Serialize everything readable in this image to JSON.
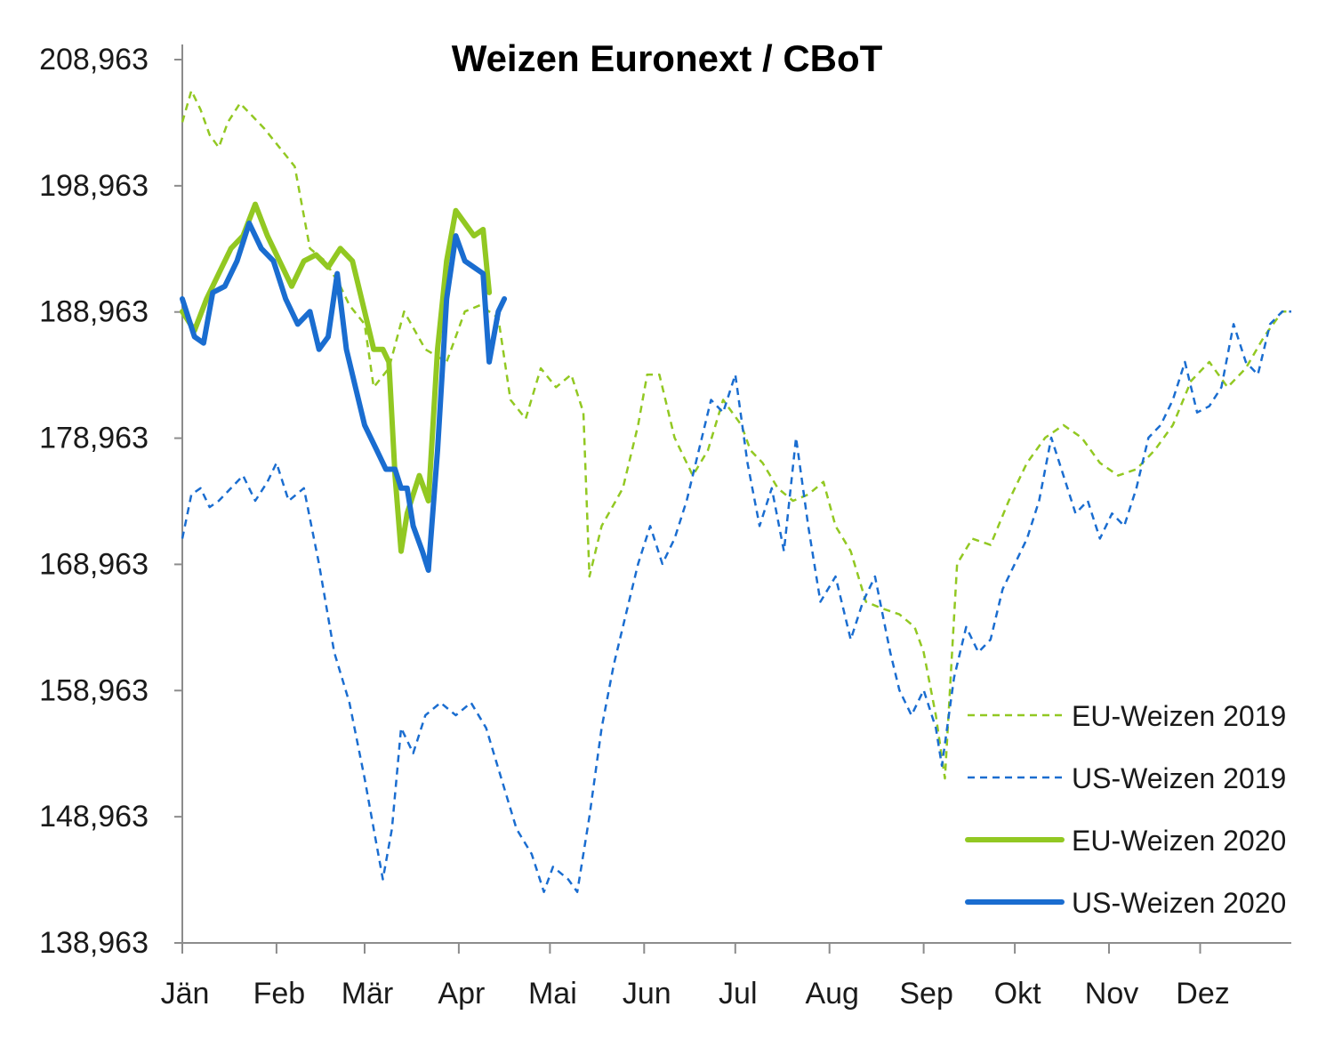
{
  "chart_data": {
    "type": "line",
    "title": "Weizen Euronext / CBoT",
    "xlabel": "",
    "ylabel": "",
    "ylim": [
      138.963,
      208.963
    ],
    "yticks": [
      138.963,
      148.963,
      158.963,
      168.963,
      178.963,
      188.963,
      198.963,
      208.963
    ],
    "ytick_labels": [
      "138,963",
      "148,963",
      "158,963",
      "168,963",
      "178,963",
      "188,963",
      "198,963",
      "208,963"
    ],
    "xlim": [
      0,
      365
    ],
    "month_starts": [
      0,
      31,
      60,
      91,
      121,
      152,
      182,
      213,
      244,
      274,
      305,
      335
    ],
    "month_labels": [
      "Jän",
      "Feb",
      "Mär",
      "Apr",
      "Mai",
      "Jun",
      "Jul",
      "Aug",
      "Sep",
      "Okt",
      "Nov",
      "Dez"
    ],
    "legend_position": "bottom-right",
    "grid": false,
    "series": [
      {
        "name": "EU-Weizen 2019",
        "color": "#92c822",
        "style": "dashed",
        "points": [
          [
            0,
            204
          ],
          [
            3,
            206.5
          ],
          [
            6,
            205
          ],
          [
            9,
            203
          ],
          [
            12,
            202
          ],
          [
            15,
            204
          ],
          [
            19,
            205.5
          ],
          [
            23,
            204.5
          ],
          [
            27,
            203.5
          ],
          [
            32,
            202
          ],
          [
            37,
            200.5
          ],
          [
            42,
            194
          ],
          [
            47,
            193
          ],
          [
            52,
            191
          ],
          [
            55,
            189.5
          ],
          [
            60,
            188
          ],
          [
            63,
            183
          ],
          [
            68,
            184.5
          ],
          [
            73,
            189
          ],
          [
            80,
            186
          ],
          [
            87,
            185
          ],
          [
            93,
            189
          ],
          [
            98,
            189.5
          ],
          [
            104,
            188.5
          ],
          [
            108,
            182
          ],
          [
            113,
            180.5
          ],
          [
            118,
            184.5
          ],
          [
            123,
            183
          ],
          [
            128,
            184
          ],
          [
            132,
            181
          ],
          [
            134,
            168
          ],
          [
            138,
            172
          ],
          [
            145,
            175
          ],
          [
            150,
            180
          ],
          [
            153,
            184
          ],
          [
            157,
            184
          ],
          [
            162,
            179
          ],
          [
            168,
            176
          ],
          [
            173,
            178
          ],
          [
            178,
            182
          ],
          [
            184,
            180
          ],
          [
            187,
            178
          ],
          [
            191,
            177
          ],
          [
            196,
            175
          ],
          [
            201,
            174
          ],
          [
            206,
            174.5
          ],
          [
            211,
            175.5
          ],
          [
            215,
            172
          ],
          [
            220,
            170
          ],
          [
            225,
            166
          ],
          [
            230,
            165.5
          ],
          [
            236,
            165
          ],
          [
            241,
            164
          ],
          [
            244,
            162
          ],
          [
            248,
            157
          ],
          [
            251,
            152
          ],
          [
            255,
            169
          ],
          [
            260,
            171
          ],
          [
            266,
            170.5
          ],
          [
            272,
            174
          ],
          [
            278,
            177
          ],
          [
            284,
            179
          ],
          [
            290,
            180
          ],
          [
            296,
            179
          ],
          [
            302,
            177
          ],
          [
            308,
            176
          ],
          [
            314,
            176.5
          ],
          [
            320,
            178
          ],
          [
            326,
            180
          ],
          [
            332,
            183.5
          ],
          [
            338,
            185
          ],
          [
            344,
            183
          ],
          [
            350,
            184.5
          ],
          [
            356,
            187
          ],
          [
            362,
            189
          ],
          [
            365,
            189
          ]
        ]
      },
      {
        "name": "US-Weizen 2019",
        "color": "#1a6dd0",
        "style": "dashed",
        "points": [
          [
            0,
            171
          ],
          [
            3,
            174.5
          ],
          [
            6,
            175
          ],
          [
            9,
            173.5
          ],
          [
            12,
            174
          ],
          [
            16,
            175
          ],
          [
            20,
            176
          ],
          [
            24,
            174
          ],
          [
            28,
            175.5
          ],
          [
            31,
            177
          ],
          [
            35,
            174
          ],
          [
            40,
            175
          ],
          [
            45,
            169
          ],
          [
            50,
            162
          ],
          [
            55,
            158
          ],
          [
            60,
            152
          ],
          [
            63,
            148
          ],
          [
            66,
            144
          ],
          [
            69,
            148
          ],
          [
            72,
            156
          ],
          [
            76,
            154
          ],
          [
            80,
            157
          ],
          [
            85,
            158
          ],
          [
            90,
            157
          ],
          [
            95,
            158
          ],
          [
            100,
            156
          ],
          [
            105,
            152
          ],
          [
            110,
            148
          ],
          [
            115,
            146
          ],
          [
            119,
            143
          ],
          [
            122,
            145
          ],
          [
            127,
            144
          ],
          [
            130,
            143
          ],
          [
            134,
            149
          ],
          [
            138,
            156
          ],
          [
            142,
            161
          ],
          [
            146,
            165
          ],
          [
            150,
            169
          ],
          [
            154,
            172
          ],
          [
            158,
            169
          ],
          [
            162,
            171
          ],
          [
            166,
            174
          ],
          [
            170,
            178
          ],
          [
            174,
            182
          ],
          [
            178,
            181
          ],
          [
            182,
            184
          ],
          [
            186,
            177
          ],
          [
            190,
            172
          ],
          [
            194,
            175
          ],
          [
            198,
            170
          ],
          [
            202,
            179
          ],
          [
            206,
            172
          ],
          [
            210,
            166
          ],
          [
            215,
            168
          ],
          [
            220,
            163
          ],
          [
            224,
            166
          ],
          [
            228,
            168
          ],
          [
            233,
            162
          ],
          [
            236,
            159
          ],
          [
            240,
            157
          ],
          [
            244,
            159
          ],
          [
            248,
            156
          ],
          [
            250,
            153
          ],
          [
            254,
            160
          ],
          [
            258,
            164
          ],
          [
            262,
            162
          ],
          [
            266,
            163
          ],
          [
            270,
            167
          ],
          [
            274,
            169
          ],
          [
            278,
            171
          ],
          [
            282,
            174
          ],
          [
            286,
            179
          ],
          [
            290,
            176
          ],
          [
            294,
            173
          ],
          [
            298,
            174
          ],
          [
            302,
            171
          ],
          [
            306,
            173
          ],
          [
            310,
            172
          ],
          [
            314,
            175
          ],
          [
            318,
            179
          ],
          [
            322,
            180
          ],
          [
            326,
            182
          ],
          [
            330,
            185
          ],
          [
            334,
            181
          ],
          [
            338,
            181.5
          ],
          [
            342,
            183
          ],
          [
            346,
            188
          ],
          [
            350,
            185
          ],
          [
            354,
            184
          ],
          [
            358,
            188
          ],
          [
            362,
            189
          ],
          [
            365,
            189
          ]
        ]
      },
      {
        "name": "EU-Weizen 2020",
        "color": "#92c822",
        "style": "solid",
        "points": [
          [
            0,
            189
          ],
          [
            4,
            187.5
          ],
          [
            8,
            190
          ],
          [
            12,
            192
          ],
          [
            16,
            194
          ],
          [
            20,
            195
          ],
          [
            24,
            197.5
          ],
          [
            28,
            195
          ],
          [
            32,
            193
          ],
          [
            36,
            191
          ],
          [
            40,
            193
          ],
          [
            44,
            193.5
          ],
          [
            48,
            192.5
          ],
          [
            52,
            194
          ],
          [
            56,
            193
          ],
          [
            60,
            189
          ],
          [
            63,
            186
          ],
          [
            66,
            186
          ],
          [
            68,
            185
          ],
          [
            70,
            176
          ],
          [
            72,
            170
          ],
          [
            74,
            173
          ],
          [
            78,
            176
          ],
          [
            81,
            174
          ],
          [
            84,
            186
          ],
          [
            87,
            193
          ],
          [
            90,
            197
          ],
          [
            93,
            196
          ],
          [
            96,
            195
          ],
          [
            99,
            195.5
          ],
          [
            101,
            190.5
          ]
        ]
      },
      {
        "name": "US-Weizen 2020",
        "color": "#1a6dd0",
        "style": "solid",
        "points": [
          [
            0,
            190
          ],
          [
            4,
            187
          ],
          [
            7,
            186.5
          ],
          [
            10,
            190.5
          ],
          [
            14,
            191
          ],
          [
            18,
            193
          ],
          [
            22,
            196
          ],
          [
            26,
            194
          ],
          [
            30,
            193
          ],
          [
            34,
            190
          ],
          [
            38,
            188
          ],
          [
            42,
            189
          ],
          [
            45,
            186
          ],
          [
            48,
            187
          ],
          [
            51,
            192
          ],
          [
            54,
            186
          ],
          [
            57,
            183
          ],
          [
            60,
            180
          ],
          [
            64,
            178
          ],
          [
            67,
            176.5
          ],
          [
            70,
            176.5
          ],
          [
            72,
            175
          ],
          [
            74,
            175
          ],
          [
            76,
            172
          ],
          [
            79,
            170
          ],
          [
            81,
            168.5
          ],
          [
            84,
            178
          ],
          [
            87,
            190
          ],
          [
            90,
            195
          ],
          [
            93,
            193
          ],
          [
            96,
            192.5
          ],
          [
            99,
            192
          ],
          [
            101,
            185
          ],
          [
            104,
            189
          ],
          [
            106,
            190
          ]
        ]
      }
    ]
  }
}
